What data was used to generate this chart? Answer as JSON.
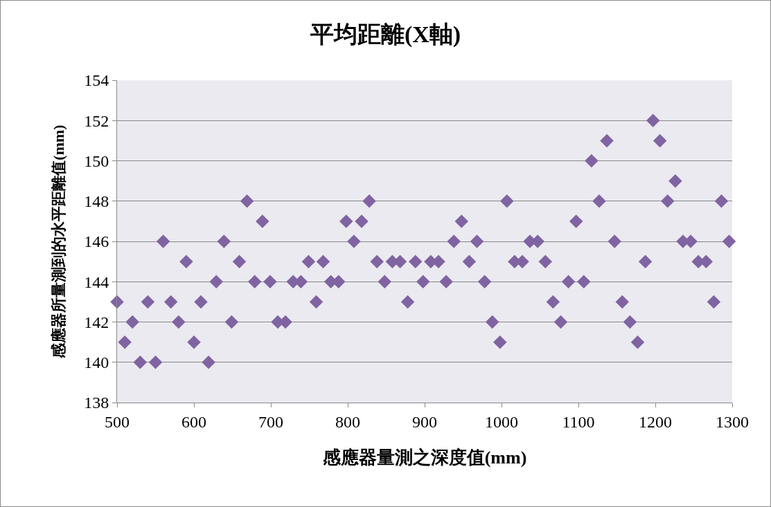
{
  "chart_data": {
    "type": "scatter",
    "title": "平均距離(X軸)",
    "xlabel": "感應器量測之深度值(mm)",
    "ylabel": "感應器所量測到的水平距離值(mm)",
    "x": [
      500,
      510,
      520,
      530,
      540,
      550,
      560,
      570,
      580,
      590,
      600,
      609,
      619,
      629,
      639,
      649,
      659,
      669,
      679,
      689,
      699,
      709,
      719,
      729,
      739,
      749,
      759,
      768,
      778,
      788,
      798,
      808,
      818,
      828,
      838,
      848,
      858,
      868,
      878,
      888,
      898,
      908,
      918,
      928,
      938,
      948,
      958,
      968,
      978,
      988,
      998,
      1007,
      1017,
      1027,
      1037,
      1047,
      1057,
      1067,
      1077,
      1087,
      1097,
      1107,
      1117,
      1127,
      1137,
      1147,
      1157,
      1167,
      1177,
      1187,
      1197,
      1206,
      1216,
      1226,
      1236,
      1246,
      1256,
      1266,
      1276,
      1286,
      1296
    ],
    "series": [
      {
        "color": "#8064a2",
        "values": [
          143,
          141,
          142,
          140,
          143,
          140,
          146,
          143,
          142,
          145,
          141,
          143,
          140,
          144,
          146,
          142,
          145,
          148,
          144,
          147,
          144,
          142,
          142,
          144,
          144,
          145,
          143,
          145,
          144,
          144,
          147,
          146,
          147,
          148,
          145,
          144,
          145,
          145,
          143,
          145,
          144,
          145,
          145,
          144,
          146,
          147,
          145,
          146,
          144,
          142,
          141,
          148,
          145,
          145,
          146,
          146,
          145,
          143,
          142,
          144,
          147,
          144,
          150,
          148,
          151,
          146,
          143,
          142,
          141,
          145,
          152,
          151,
          148,
          149,
          146,
          146,
          145,
          145,
          143,
          148,
          146
        ]
      }
    ],
    "xlim": [
      500,
      1300
    ],
    "xticks": [
      500,
      600,
      700,
      800,
      900,
      1000,
      1100,
      1200,
      1300
    ],
    "ylim": [
      138,
      154
    ],
    "yticks": [
      138,
      140,
      142,
      144,
      146,
      148,
      150,
      152,
      154
    ],
    "grid": "y",
    "marker": "diamond"
  }
}
